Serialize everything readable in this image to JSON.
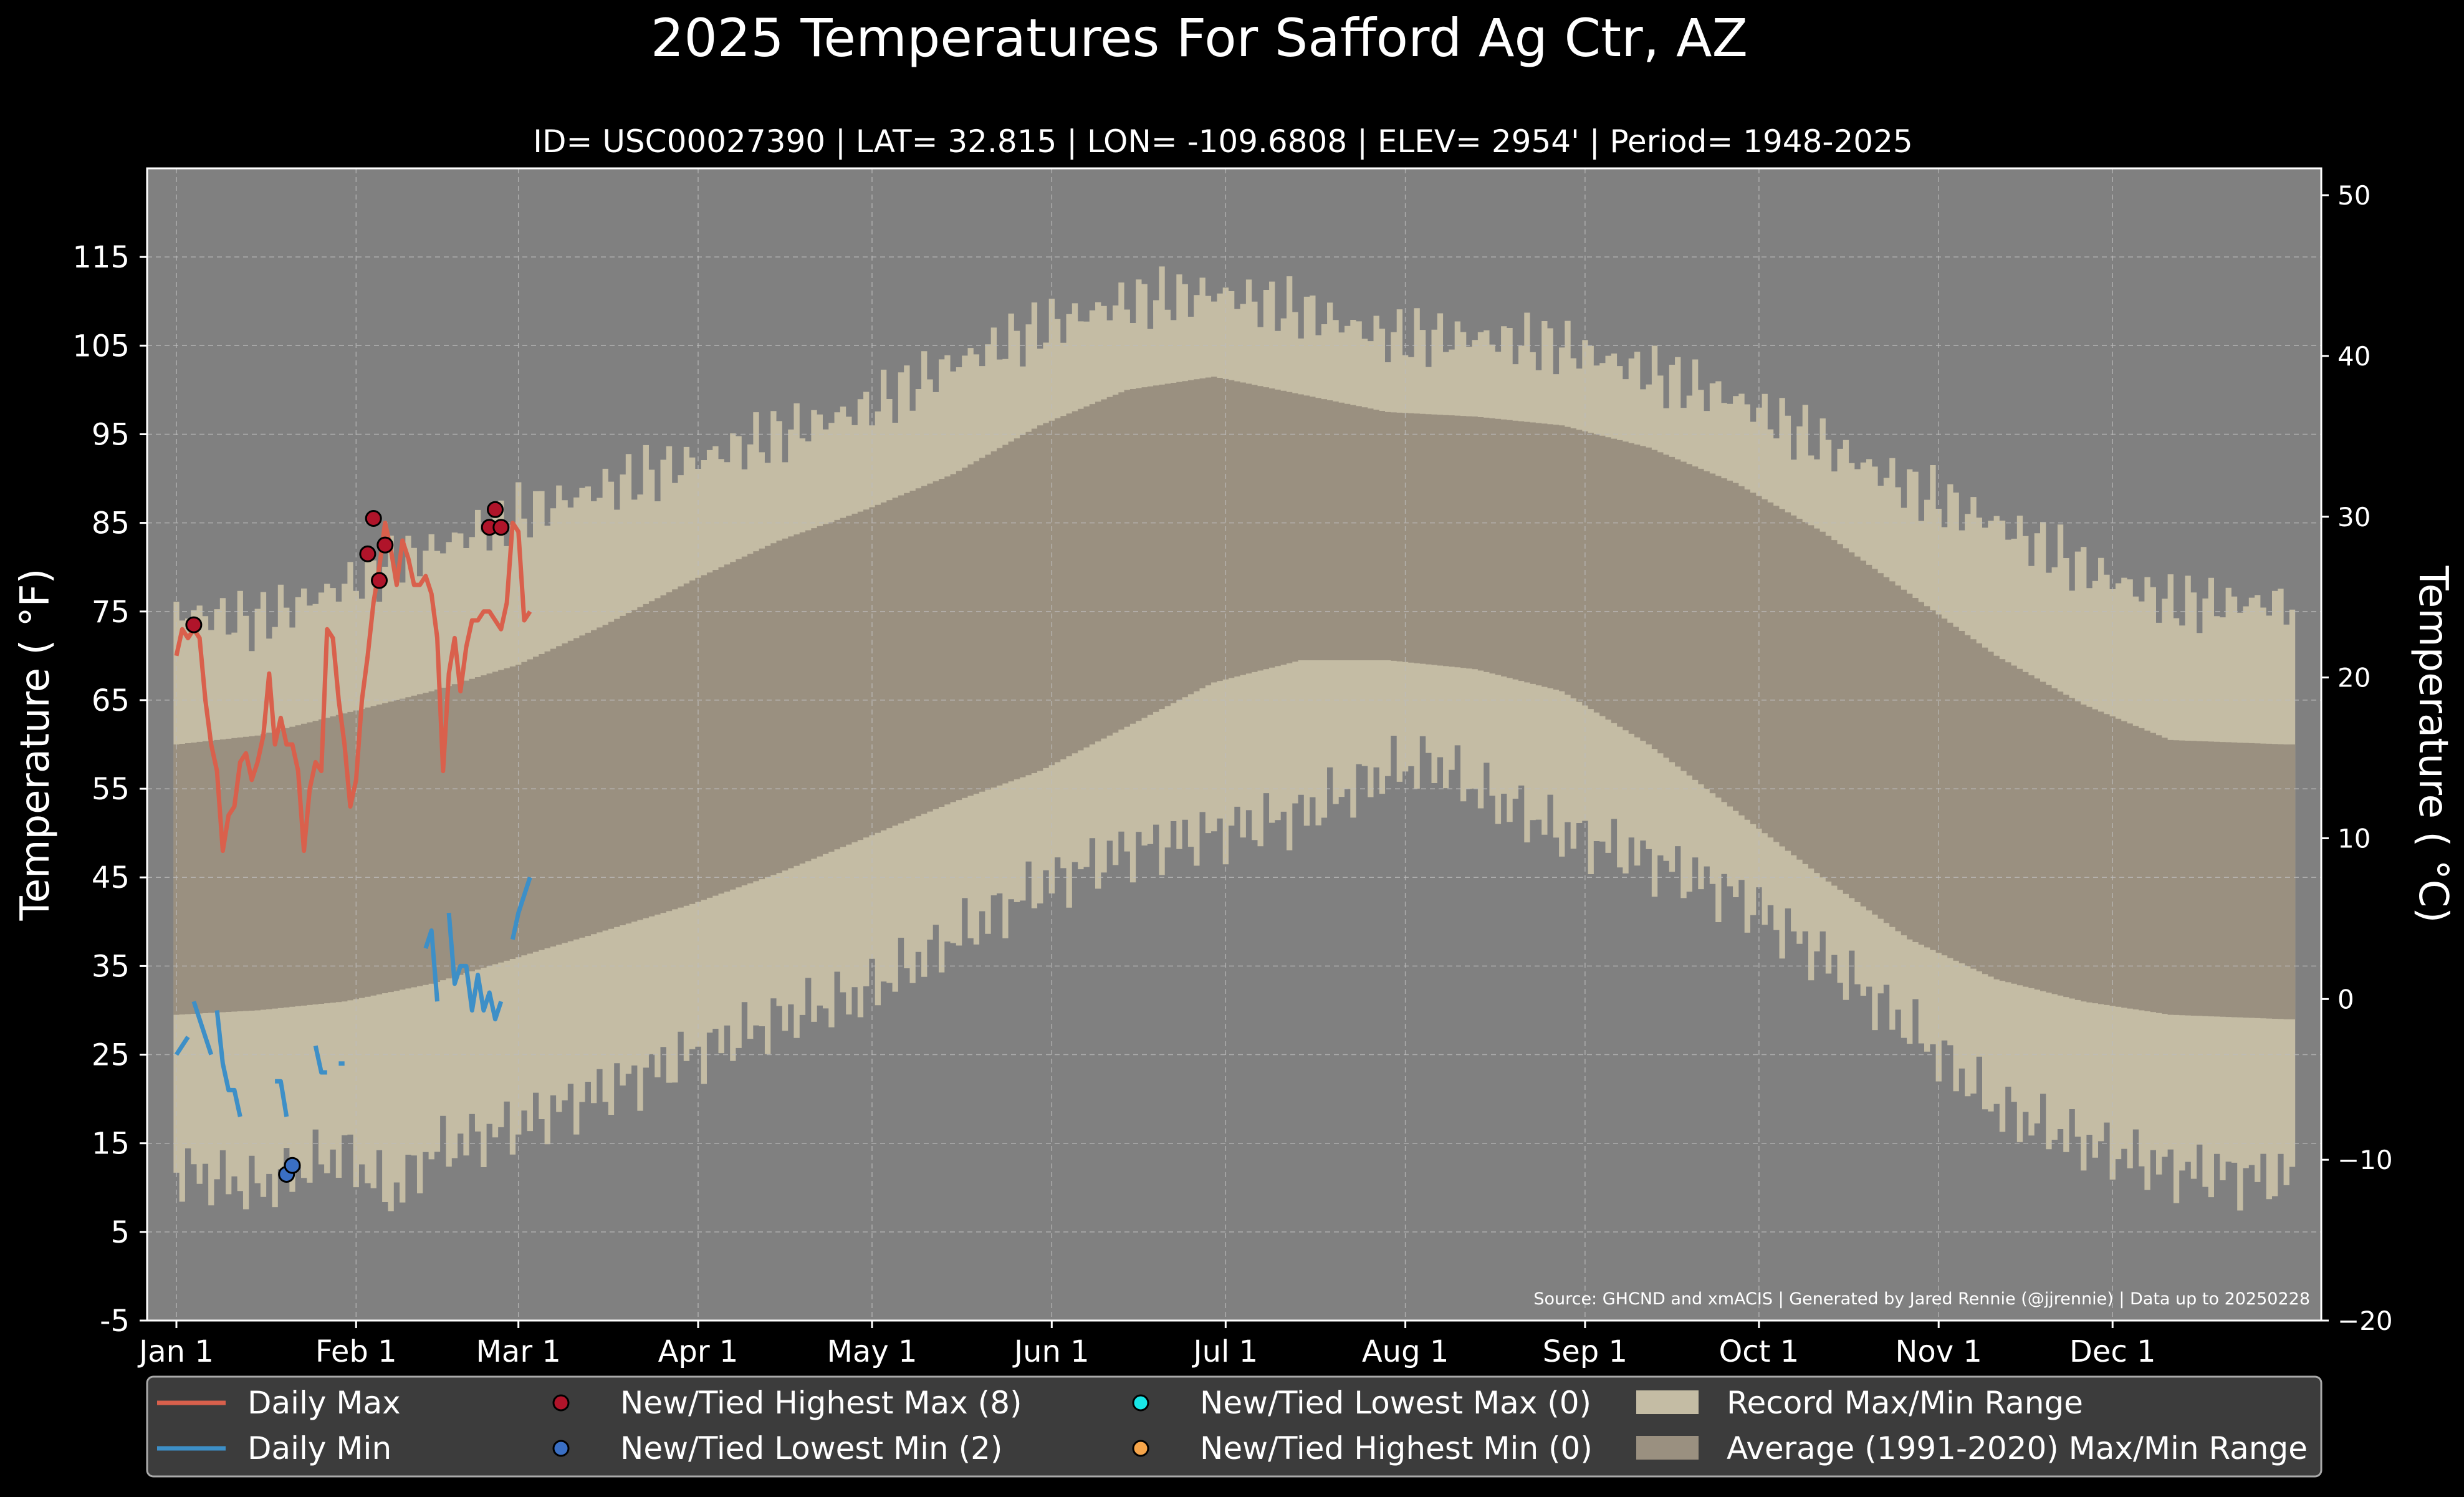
{
  "chart_data": {
    "type": "line",
    "title": "2025 Temperatures For Safford Ag Ctr, AZ",
    "subtitle": "ID= USC00027390 | LAT= 32.815 | LON= -109.6808 | ELEV= 2954' | Period= 1948-2025",
    "ylabel": "Temperature ($^\\circ$F)",
    "ylabel_display": "Temperature ( °F)",
    "ylabel_right": "Temperature ( °C)",
    "source": "Source: GHCND and xmACIS | Generated by Jared Rennie (@jjrennie) | Data up to 20250228",
    "ylim": [
      -5,
      125
    ],
    "ylim_c": [
      -20,
      51.67
    ],
    "yticks": [
      "-5",
      "5",
      "15",
      "25",
      "35",
      "45",
      "55",
      "65",
      "75",
      "85",
      "95",
      "105",
      "115"
    ],
    "yticks_right": [
      "−20",
      "−10",
      "0",
      "10",
      "20",
      "30",
      "40",
      "50"
    ],
    "xticks": [
      "Jan 1",
      "Feb 1",
      "Mar 1",
      "Apr 1",
      "May 1",
      "Jun 1",
      "Jul 1",
      "Aug 1",
      "Sep 1",
      "Oct 1",
      "Nov 1",
      "Dec 1"
    ],
    "xtick_days": [
      1,
      32,
      60,
      91,
      121,
      152,
      182,
      213,
      244,
      274,
      305,
      335
    ],
    "grid": true,
    "legend_position": "bottom",
    "record_max_anchors": [
      [
        1,
        75
      ],
      [
        15,
        74
      ],
      [
        30,
        78
      ],
      [
        45,
        82
      ],
      [
        60,
        86
      ],
      [
        75,
        89
      ],
      [
        90,
        92
      ],
      [
        105,
        95
      ],
      [
        120,
        98
      ],
      [
        135,
        103
      ],
      [
        150,
        107
      ],
      [
        165,
        110
      ],
      [
        180,
        111
      ],
      [
        195,
        109
      ],
      [
        210,
        106
      ],
      [
        225,
        106
      ],
      [
        240,
        105
      ],
      [
        255,
        102
      ],
      [
        270,
        99
      ],
      [
        285,
        94
      ],
      [
        300,
        89
      ],
      [
        315,
        85
      ],
      [
        330,
        80
      ],
      [
        345,
        76
      ],
      [
        365,
        76
      ]
    ],
    "record_min_anchors": [
      [
        1,
        12
      ],
      [
        15,
        10
      ],
      [
        30,
        14
      ],
      [
        38,
        9
      ],
      [
        45,
        14
      ],
      [
        60,
        17
      ],
      [
        75,
        21
      ],
      [
        90,
        25
      ],
      [
        105,
        29
      ],
      [
        120,
        32
      ],
      [
        135,
        38
      ],
      [
        150,
        44
      ],
      [
        165,
        48
      ],
      [
        180,
        50
      ],
      [
        195,
        52
      ],
      [
        210,
        57
      ],
      [
        218,
        58
      ],
      [
        225,
        55
      ],
      [
        240,
        50
      ],
      [
        255,
        47
      ],
      [
        270,
        43
      ],
      [
        285,
        36
      ],
      [
        300,
        28
      ],
      [
        315,
        19
      ],
      [
        330,
        15
      ],
      [
        345,
        12
      ],
      [
        365,
        11
      ]
    ],
    "average_max_anchors": [
      [
        1,
        60
      ],
      [
        15,
        61
      ],
      [
        30,
        63.5
      ],
      [
        45,
        66
      ],
      [
        60,
        69
      ],
      [
        75,
        73.5
      ],
      [
        90,
        78.5
      ],
      [
        105,
        83
      ],
      [
        120,
        86.5
      ],
      [
        135,
        90.5
      ],
      [
        150,
        96
      ],
      [
        165,
        100
      ],
      [
        180,
        101.5
      ],
      [
        195,
        99.5
      ],
      [
        210,
        97.5
      ],
      [
        225,
        97
      ],
      [
        240,
        96
      ],
      [
        255,
        93.5
      ],
      [
        270,
        89.5
      ],
      [
        285,
        84
      ],
      [
        300,
        77
      ],
      [
        315,
        70
      ],
      [
        330,
        64.5
      ],
      [
        345,
        60.5
      ],
      [
        365,
        60
      ]
    ],
    "average_min_anchors": [
      [
        1,
        29.5
      ],
      [
        15,
        30
      ],
      [
        30,
        31
      ],
      [
        45,
        33
      ],
      [
        60,
        36
      ],
      [
        75,
        39
      ],
      [
        90,
        42
      ],
      [
        105,
        45.5
      ],
      [
        120,
        49.5
      ],
      [
        135,
        53.5
      ],
      [
        150,
        57
      ],
      [
        165,
        62
      ],
      [
        180,
        67
      ],
      [
        195,
        69.5
      ],
      [
        210,
        69.5
      ],
      [
        225,
        68.5
      ],
      [
        240,
        66
      ],
      [
        255,
        60
      ],
      [
        270,
        52.5
      ],
      [
        285,
        45
      ],
      [
        300,
        38
      ],
      [
        315,
        33.5
      ],
      [
        330,
        31
      ],
      [
        345,
        29.5
      ],
      [
        365,
        29
      ]
    ],
    "daily_max": [
      70,
      73,
      72,
      73,
      72,
      65,
      60,
      57,
      48,
      52,
      53,
      58,
      59,
      56,
      58,
      61,
      68,
      60,
      63,
      60,
      60,
      57,
      48,
      55,
      58,
      57,
      73,
      72,
      65,
      60,
      53,
      56,
      65,
      70,
      76,
      80,
      85,
      82,
      78,
      83,
      81,
      78,
      78,
      79,
      77,
      72,
      57,
      68,
      72,
      66,
      71,
      74,
      74,
      75,
      75,
      74,
      73,
      76,
      85,
      84,
      74,
      75
    ],
    "daily_min_segments": [
      [
        [
          1,
          25
        ],
        [
          2,
          26
        ],
        [
          3,
          27
        ]
      ],
      [
        [
          4,
          31
        ],
        [
          5,
          29
        ],
        [
          6,
          27
        ],
        [
          7,
          25
        ]
      ],
      [
        [
          8,
          30
        ],
        [
          9,
          24
        ],
        [
          10,
          21
        ],
        [
          11,
          21
        ],
        [
          12,
          18
        ]
      ],
      [
        [
          18,
          22
        ],
        [
          19,
          22
        ],
        [
          20,
          18
        ]
      ],
      [
        [
          25,
          26
        ],
        [
          26,
          23
        ],
        [
          27,
          23
        ]
      ],
      [
        [
          29,
          24
        ],
        [
          30,
          24
        ]
      ],
      [
        [
          44,
          37
        ],
        [
          45,
          39
        ],
        [
          46,
          31
        ]
      ],
      [
        [
          48,
          41
        ],
        [
          49,
          33
        ],
        [
          50,
          35
        ],
        [
          51,
          35
        ],
        [
          52,
          30
        ],
        [
          53,
          34
        ],
        [
          54,
          30
        ],
        [
          55,
          32
        ],
        [
          56,
          29
        ],
        [
          57,
          31
        ]
      ],
      [
        [
          59,
          38
        ],
        [
          60,
          41
        ],
        [
          61,
          43
        ],
        [
          62,
          45
        ]
      ]
    ],
    "record_high_max_points": [
      [
        4,
        73.5
      ],
      [
        34,
        81.5
      ],
      [
        35,
        85.5
      ],
      [
        36,
        78.5
      ],
      [
        37,
        82.5
      ],
      [
        55,
        84.5
      ],
      [
        56,
        86.5
      ],
      [
        57,
        84.5
      ]
    ],
    "record_low_min_points": [
      [
        20,
        11.5
      ],
      [
        21,
        12.5
      ]
    ],
    "series": [
      {
        "name": "Daily Max",
        "color": "#d9604c"
      },
      {
        "name": "Daily Min",
        "color": "#3d8fc7"
      },
      {
        "name": "New/Tied Highest Max (8)",
        "color": "#b0142a",
        "marker": "circle"
      },
      {
        "name": "New/Tied Lowest Min (2)",
        "color": "#3a6fc4",
        "marker": "circle"
      },
      {
        "name": "New/Tied Lowest Max (0)",
        "color": "#19e6e6",
        "marker": "circle"
      },
      {
        "name": "New/Tied Highest Min (0)",
        "color": "#f6a54a",
        "marker": "circle"
      },
      {
        "name": "Record Max/Min Range",
        "color": "#c4bca4",
        "marker": "patch"
      },
      {
        "name": "Average (1991-2020) Max/Min Range",
        "color": "#9a9080",
        "marker": "patch"
      }
    ]
  },
  "colors": {
    "background": "#000000",
    "plot_background": "#808080",
    "record_band": "#c4bca4",
    "average_band": "#9a9080",
    "daily_max": "#d9604c",
    "daily_min": "#3d8fc7",
    "legend_background": "#3c3c3c"
  }
}
